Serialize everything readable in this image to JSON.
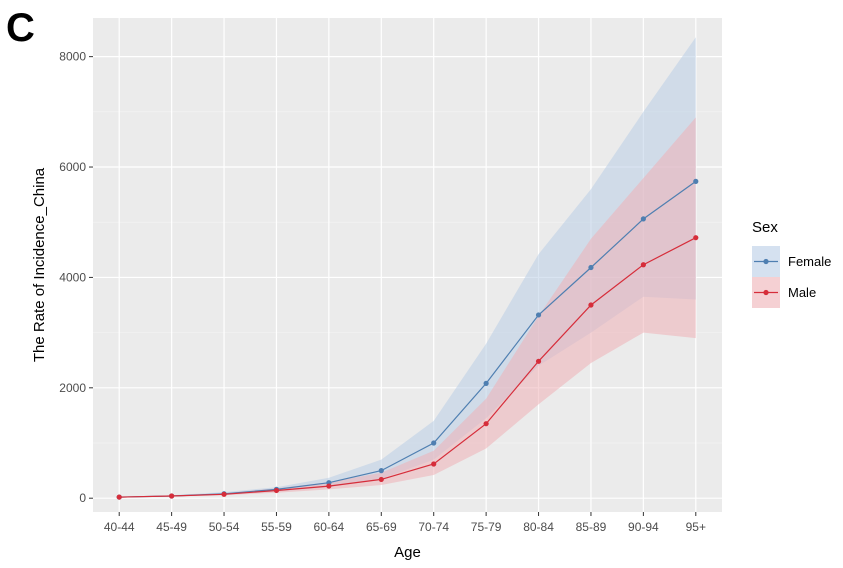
{
  "panel_label": "C",
  "chart_data": {
    "type": "line",
    "xlabel": "Age",
    "ylabel": "The Rate of Incidence_China",
    "categories": [
      "40-44",
      "45-49",
      "50-54",
      "55-59",
      "60-64",
      "65-69",
      "70-74",
      "75-79",
      "80-84",
      "85-89",
      "90-94",
      "95+"
    ],
    "ylim": [
      -250,
      8700
    ],
    "yticks": [
      0,
      2000,
      4000,
      6000,
      8000
    ],
    "grid": true,
    "legend": {
      "title": "Sex",
      "placement": "right"
    },
    "series": [
      {
        "name": "Female",
        "color": "#4f7fb1",
        "band_color": "#b9cde6",
        "values": [
          20,
          40,
          80,
          160,
          280,
          500,
          1000,
          2080,
          3320,
          4180,
          5060,
          5740
        ],
        "lower": [
          15,
          30,
          60,
          120,
          200,
          350,
          700,
          1450,
          2400,
          3000,
          3650,
          3600
        ],
        "upper": [
          25,
          55,
          110,
          200,
          370,
          700,
          1400,
          2800,
          4420,
          5600,
          7000,
          8350
        ]
      },
      {
        "name": "Male",
        "color": "#d62d3a",
        "band_color": "#efb0b6",
        "values": [
          20,
          40,
          70,
          140,
          220,
          340,
          620,
          1350,
          2480,
          3500,
          4230,
          4720
        ],
        "lower": [
          15,
          30,
          55,
          100,
          160,
          240,
          420,
          900,
          1700,
          2450,
          3000,
          2900
        ],
        "upper": [
          25,
          50,
          90,
          180,
          290,
          460,
          860,
          1800,
          3300,
          4700,
          5800,
          6900
        ]
      }
    ]
  }
}
